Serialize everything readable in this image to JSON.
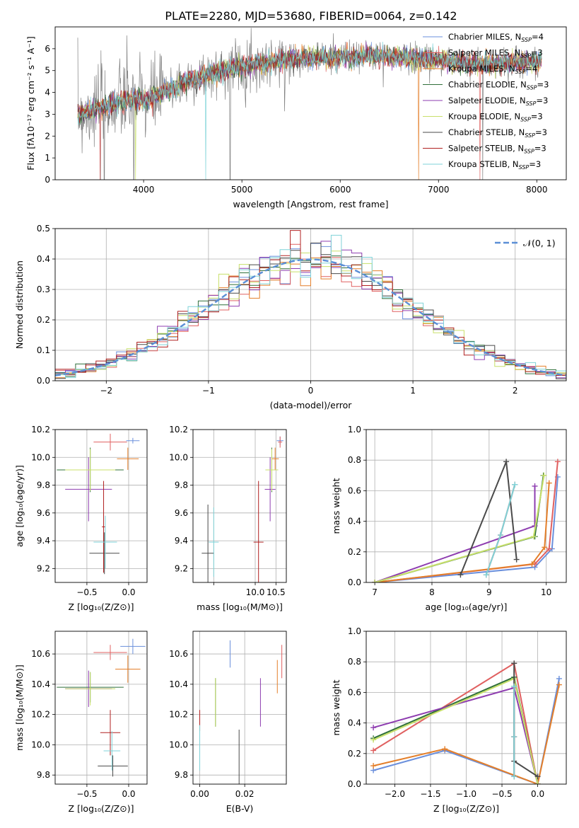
{
  "title": "PLATE=2280, MJD=53680, FIBERID=0064, z=0.142",
  "colors": {
    "chabrier_miles": "#6a8fdc",
    "salpeter_miles": "#e06060",
    "kroupa_miles": "#e47f2a",
    "chabrier_elodie": "#2f6f3a",
    "salpeter_elodie": "#8e3db0",
    "kroupa_elodie": "#c8e06a",
    "chabrier_stelib": "#4a4a4a",
    "salpeter_stelib": "#b02020",
    "kroupa_stelib": "#7fd3d8",
    "data": "#808080",
    "gauss": "#5b8fd6"
  },
  "chart_data": [
    {
      "id": "spectrum",
      "type": "line",
      "xlabel": "wavelength [Angstrom, rest frame]",
      "ylabel": "Flux [fλ10⁻¹⁷ erg cm⁻² s⁻¹ A⁻¹]",
      "xlim": [
        3100,
        8300
      ],
      "ylim": [
        0,
        7
      ],
      "xticks": [
        4000,
        5000,
        6000,
        7000,
        8000
      ],
      "yticks": [
        0,
        1,
        2,
        3,
        4,
        5,
        6
      ],
      "grid": false,
      "legend_position": "top-right",
      "legend": [
        {
          "label": "Chabrier MILES, N",
          "sub": "SSP",
          "tail": "=4",
          "color": "chabrier_miles"
        },
        {
          "label": "Salpeter MILES, N",
          "sub": "SSP",
          "tail": "=3",
          "color": "salpeter_miles"
        },
        {
          "label": "Kroupa MILES, N",
          "sub": "SSP",
          "tail": "=4",
          "color": "kroupa_miles"
        },
        {
          "label": "Chabrier ELODIE, N",
          "sub": "SSP",
          "tail": "=3",
          "color": "chabrier_elodie"
        },
        {
          "label": "Salpeter ELODIE, N",
          "sub": "SSP",
          "tail": "=3",
          "color": "salpeter_elodie"
        },
        {
          "label": "Kroupa ELODIE, N",
          "sub": "SSP",
          "tail": "=3",
          "color": "kroupa_elodie"
        },
        {
          "label": "Chabrier STELIB, N",
          "sub": "SSP",
          "tail": "=3",
          "color": "chabrier_stelib"
        },
        {
          "label": "Salpeter STELIB, N",
          "sub": "SSP",
          "tail": "=3",
          "color": "salpeter_stelib"
        },
        {
          "label": "Kroupa STELIB, N",
          "sub": "SSP",
          "tail": "=3",
          "color": "kroupa_stelib"
        }
      ],
      "continuum": [
        [
          3330,
          3.0
        ],
        [
          3500,
          3.2
        ],
        [
          3700,
          3.5
        ],
        [
          3900,
          3.7
        ],
        [
          4000,
          3.6
        ],
        [
          4200,
          4.0
        ],
        [
          4500,
          4.6
        ],
        [
          4800,
          5.0
        ],
        [
          5000,
          5.2
        ],
        [
          5300,
          5.4
        ],
        [
          5600,
          5.6
        ],
        [
          6000,
          5.6
        ],
        [
          6300,
          5.7
        ],
        [
          6600,
          5.6
        ],
        [
          7000,
          5.5
        ],
        [
          7300,
          5.3
        ],
        [
          7600,
          5.3
        ],
        [
          8000,
          5.4
        ],
        [
          8050,
          5.4
        ]
      ],
      "model_drops": [
        {
          "x": 3560,
          "color": "salpeter_miles"
        },
        {
          "x": 3920,
          "color": "kroupa_elodie"
        },
        {
          "x": 4630,
          "color": "kroupa_stelib"
        },
        {
          "x": 6800,
          "color": "kroupa_miles"
        },
        {
          "x": 7420,
          "color": "salpeter_miles"
        }
      ],
      "data_drops": [
        3560,
        3600,
        3900,
        4880,
        7450
      ]
    },
    {
      "id": "residuals",
      "type": "line",
      "xlabel": "(data-model)/error",
      "ylabel": "Normed distribution",
      "xlim": [
        -2.5,
        2.5
      ],
      "ylim": [
        0,
        0.5
      ],
      "xticks": [
        -2,
        -1,
        0,
        1,
        2
      ],
      "yticks": [
        0.0,
        0.1,
        0.2,
        0.3,
        0.4,
        0.5
      ],
      "grid": true,
      "legend_position": "top-right",
      "legend": [
        {
          "label": "𝒩(0, 1)",
          "color": "gauss",
          "dashed": true
        }
      ],
      "bin_width": 0.1,
      "bin_start": -2.5
    },
    {
      "id": "age_vs_Z",
      "type": "scatter",
      "xlabel": "Z [log₁₀(Z/Z⊙)]",
      "ylabel": "age  [log₁₀(age/yr)]",
      "xlim": [
        -0.88,
        0.22
      ],
      "ylim": [
        9.1,
        10.2
      ],
      "xticks": [
        -0.5,
        0.0
      ],
      "yticks": [
        9.2,
        9.4,
        9.6,
        9.8,
        10.0,
        10.2
      ],
      "grid": true,
      "points": [
        {
          "x": 0.05,
          "y": 10.12,
          "xerr": 0.08,
          "yerr": 0.02,
          "color": "chabrier_miles"
        },
        {
          "x": -0.22,
          "y": 10.11,
          "xerr": 0.2,
          "yerr": 0.06,
          "color": "salpeter_miles"
        },
        {
          "x": -0.01,
          "y": 9.99,
          "xerr": 0.13,
          "yerr": 0.08,
          "color": "kroupa_miles"
        },
        {
          "x": -0.46,
          "y": 9.91,
          "xerr": 0.4,
          "yerr": 0.16,
          "color": "chabrier_elodie"
        },
        {
          "x": -0.48,
          "y": 9.77,
          "xerr": 0.28,
          "yerr": 0.23,
          "color": "salpeter_elodie"
        },
        {
          "x": -0.46,
          "y": 9.91,
          "xerr": 0.3,
          "yerr": 0.15,
          "color": "kroupa_elodie"
        },
        {
          "x": -0.29,
          "y": 9.31,
          "xerr": 0.18,
          "yerr": 0.15,
          "color": "chabrier_stelib"
        },
        {
          "x": -0.3,
          "y": 9.5,
          "xerr": 0.02,
          "yerr": 0.33,
          "color": "salpeter_stelib"
        },
        {
          "x": -0.28,
          "y": 9.39,
          "xerr": 0.14,
          "yerr": 0.19,
          "color": "kroupa_stelib"
        }
      ]
    },
    {
      "id": "age_vs_mass",
      "type": "scatter",
      "xlabel": "mass [log₁₀(M/M⊙)]",
      "ylabel": "",
      "xlim": [
        8.5,
        10.75
      ],
      "ylim": [
        9.1,
        10.2
      ],
      "xticks": [
        9.0,
        10.0,
        10.5
      ],
      "xtick_labels": [
        "",
        "10.0",
        "10.5"
      ],
      "yticks": [
        9.2,
        9.4,
        9.6,
        9.8,
        10.0,
        10.2
      ],
      "grid": true,
      "points": [
        {
          "x": 10.6,
          "y": 10.12,
          "xerr": 0.08,
          "yerr": 0.03,
          "color": "chabrier_miles"
        },
        {
          "x": 10.6,
          "y": 10.11,
          "xerr": 0.05,
          "yerr": 0.04,
          "color": "salpeter_miles"
        },
        {
          "x": 10.48,
          "y": 9.99,
          "xerr": 0.09,
          "yerr": 0.08,
          "color": "kroupa_miles"
        },
        {
          "x": 10.4,
          "y": 9.91,
          "xerr": 0.15,
          "yerr": 0.16,
          "color": "chabrier_elodie"
        },
        {
          "x": 10.36,
          "y": 9.77,
          "xerr": 0.13,
          "yerr": 0.23,
          "color": "salpeter_elodie"
        },
        {
          "x": 10.4,
          "y": 9.91,
          "xerr": 0.15,
          "yerr": 0.15,
          "color": "kroupa_elodie"
        },
        {
          "x": 8.86,
          "y": 9.31,
          "xerr": 0.15,
          "yerr": 0.35,
          "color": "chabrier_stelib"
        },
        {
          "x": 10.08,
          "y": 9.39,
          "xerr": 0.12,
          "yerr": 0.44,
          "color": "salpeter_stelib"
        },
        {
          "x": 9.0,
          "y": 9.39,
          "xerr": 0.12,
          "yerr": 0.25,
          "color": "kroupa_stelib"
        }
      ]
    },
    {
      "id": "weight_vs_age",
      "type": "line",
      "xlabel": "age  [log₁₀(age/yr)]",
      "ylabel": "mass weight",
      "xlim": [
        6.85,
        10.35
      ],
      "ylim": [
        0,
        1
      ],
      "xticks": [
        7,
        8,
        9,
        10
      ],
      "yticks": [
        0.0,
        0.2,
        0.4,
        0.6,
        0.8,
        1.0
      ],
      "grid": true,
      "series": [
        {
          "color": "chabrier_miles",
          "points": [
            [
              7.0,
              0.0
            ],
            [
              9.8,
              0.1
            ],
            [
              10.1,
              0.22
            ],
            [
              10.2,
              0.69
            ]
          ]
        },
        {
          "color": "salpeter_miles",
          "points": [
            [
              7.0,
              0.0
            ],
            [
              9.8,
              0.12
            ],
            [
              10.05,
              0.22
            ],
            [
              10.2,
              0.79
            ]
          ]
        },
        {
          "color": "kroupa_miles",
          "points": [
            [
              7.0,
              0.0
            ],
            [
              9.75,
              0.12
            ],
            [
              9.97,
              0.23
            ],
            [
              10.05,
              0.65
            ]
          ]
        },
        {
          "color": "chabrier_elodie",
          "points": [
            [
              7.0,
              0.0
            ],
            [
              9.8,
              0.3
            ],
            [
              9.95,
              0.7
            ]
          ]
        },
        {
          "color": "salpeter_elodie",
          "points": [
            [
              7.0,
              0.0
            ],
            [
              9.8,
              0.37
            ],
            [
              9.8,
              0.63
            ]
          ]
        },
        {
          "color": "kroupa_elodie",
          "points": [
            [
              7.0,
              0.0
            ],
            [
              9.78,
              0.3
            ],
            [
              9.96,
              0.7
            ]
          ]
        },
        {
          "color": "chabrier_stelib",
          "points": [
            [
              8.5,
              0.05
            ],
            [
              9.3,
              0.79
            ],
            [
              9.48,
              0.15
            ]
          ]
        },
        {
          "color": "salpeter_stelib",
          "points": [
            [
              8.95,
              0.05
            ],
            [
              9.2,
              0.31
            ],
            [
              9.45,
              0.64
            ]
          ]
        },
        {
          "color": "kroupa_stelib",
          "points": [
            [
              8.95,
              0.05
            ],
            [
              9.2,
              0.31
            ],
            [
              9.45,
              0.64
            ]
          ]
        }
      ]
    },
    {
      "id": "mass_vs_Z",
      "type": "scatter",
      "xlabel": "Z [log₁₀(Z/Z⊙)]",
      "ylabel": "mass [log₁₀(M/M⊙)]",
      "xlim": [
        -0.88,
        0.22
      ],
      "ylim": [
        9.74,
        10.75
      ],
      "xticks": [
        -0.5,
        0.0
      ],
      "yticks": [
        9.8,
        10.0,
        10.2,
        10.4,
        10.6
      ],
      "grid": true,
      "points": [
        {
          "x": 0.05,
          "y": 10.65,
          "xerr": 0.15,
          "yerr": 0.05,
          "color": "chabrier_miles"
        },
        {
          "x": -0.22,
          "y": 10.61,
          "xerr": 0.2,
          "yerr": 0.05,
          "color": "salpeter_miles"
        },
        {
          "x": -0.01,
          "y": 10.5,
          "xerr": 0.15,
          "yerr": 0.09,
          "color": "kroupa_miles"
        },
        {
          "x": -0.46,
          "y": 10.38,
          "xerr": 0.4,
          "yerr": 0.1,
          "color": "chabrier_elodie"
        },
        {
          "x": -0.48,
          "y": 10.37,
          "xerr": 0.28,
          "yerr": 0.12,
          "color": "salpeter_elodie"
        },
        {
          "x": -0.46,
          "y": 10.37,
          "xerr": 0.3,
          "yerr": 0.11,
          "color": "kroupa_elodie"
        },
        {
          "x": -0.19,
          "y": 9.86,
          "xerr": 0.18,
          "yerr": 0.07,
          "color": "chabrier_stelib"
        },
        {
          "x": -0.22,
          "y": 10.08,
          "xerr": 0.12,
          "yerr": 0.15,
          "color": "salpeter_stelib"
        },
        {
          "x": -0.2,
          "y": 9.96,
          "xerr": 0.1,
          "yerr": 0.13,
          "color": "kroupa_stelib"
        }
      ]
    },
    {
      "id": "mass_vs_ebv",
      "type": "scatter",
      "xlabel": "E(B-V)",
      "ylabel": "",
      "xlim": [
        -0.003,
        0.0385
      ],
      "ylim": [
        9.74,
        10.75
      ],
      "xticks": [
        0.0,
        0.02
      ],
      "yticks": [
        9.8,
        10.0,
        10.2,
        10.4,
        10.6
      ],
      "grid": true,
      "points": [
        {
          "x": 0.0135,
          "y": 10.6,
          "xerr": 0,
          "yerr": 0.09,
          "color": "chabrier_miles"
        },
        {
          "x": 0.0365,
          "y": 10.55,
          "xerr": 0,
          "yerr": 0.11,
          "color": "salpeter_miles"
        },
        {
          "x": 0.0345,
          "y": 10.45,
          "xerr": 0,
          "yerr": 0.11,
          "color": "kroupa_miles"
        },
        {
          "x": 0.007,
          "y": 10.28,
          "xerr": 0,
          "yerr": 0.16,
          "color": "chabrier_elodie"
        },
        {
          "x": 0.027,
          "y": 10.28,
          "xerr": 0,
          "yerr": 0.16,
          "color": "salpeter_elodie"
        },
        {
          "x": 0.007,
          "y": 10.28,
          "xerr": 0,
          "yerr": 0.16,
          "color": "kroupa_elodie"
        },
        {
          "x": 0.0175,
          "y": 9.86,
          "xerr": 0,
          "yerr": 0.24,
          "color": "chabrier_stelib"
        },
        {
          "x": 0.0,
          "y": 10.16,
          "xerr": 0,
          "yerr": 0.07,
          "color": "salpeter_stelib"
        },
        {
          "x": 0.0,
          "y": 9.98,
          "xerr": 0,
          "yerr": 0.15,
          "color": "kroupa_stelib"
        }
      ]
    },
    {
      "id": "weight_vs_Z",
      "type": "line",
      "xlabel": "Z [log₁₀(Z/Z⊙)]",
      "ylabel": "mass weight",
      "xlim": [
        -2.4,
        0.4
      ],
      "ylim": [
        0,
        1
      ],
      "xticks": [
        -2.0,
        -1.5,
        -1.0,
        -0.5,
        0.0
      ],
      "yticks": [
        0.0,
        0.2,
        0.4,
        0.6,
        0.8,
        1.0
      ],
      "grid": true,
      "series": [
        {
          "color": "chabrier_miles",
          "points": [
            [
              -2.3,
              0.09
            ],
            [
              -1.3,
              0.22
            ],
            [
              0.0,
              0.0
            ],
            [
              0.3,
              0.69
            ]
          ]
        },
        {
          "color": "salpeter_miles",
          "points": [
            [
              -2.3,
              0.22
            ],
            [
              -0.33,
              0.79
            ],
            [
              0.0,
              0.0
            ]
          ]
        },
        {
          "color": "kroupa_miles",
          "points": [
            [
              -2.3,
              0.12
            ],
            [
              -1.3,
              0.23
            ],
            [
              0.0,
              0.0
            ],
            [
              0.3,
              0.65
            ]
          ]
        },
        {
          "color": "chabrier_elodie",
          "points": [
            [
              -2.3,
              0.3
            ],
            [
              -0.33,
              0.7
            ],
            [
              0.0,
              0.0
            ]
          ]
        },
        {
          "color": "salpeter_elodie",
          "points": [
            [
              -2.3,
              0.37
            ],
            [
              -0.33,
              0.63
            ],
            [
              0.0,
              0.0
            ]
          ]
        },
        {
          "color": "kroupa_elodie",
          "points": [
            [
              -2.3,
              0.29
            ],
            [
              -0.33,
              0.69
            ],
            [
              0.0,
              0.0
            ]
          ]
        },
        {
          "color": "chabrier_stelib",
          "points": [
            [
              -0.33,
              0.79
            ],
            [
              -0.33,
              0.15
            ],
            [
              0.0,
              0.05
            ]
          ]
        },
        {
          "color": "salpeter_stelib",
          "points": [
            [
              -0.33,
              0.64
            ],
            [
              -0.33,
              0.31
            ],
            [
              -0.33,
              0.05
            ]
          ]
        },
        {
          "color": "kroupa_stelib",
          "points": [
            [
              -0.33,
              0.64
            ],
            [
              -0.33,
              0.31
            ],
            [
              -0.33,
              0.05
            ]
          ]
        }
      ]
    }
  ]
}
